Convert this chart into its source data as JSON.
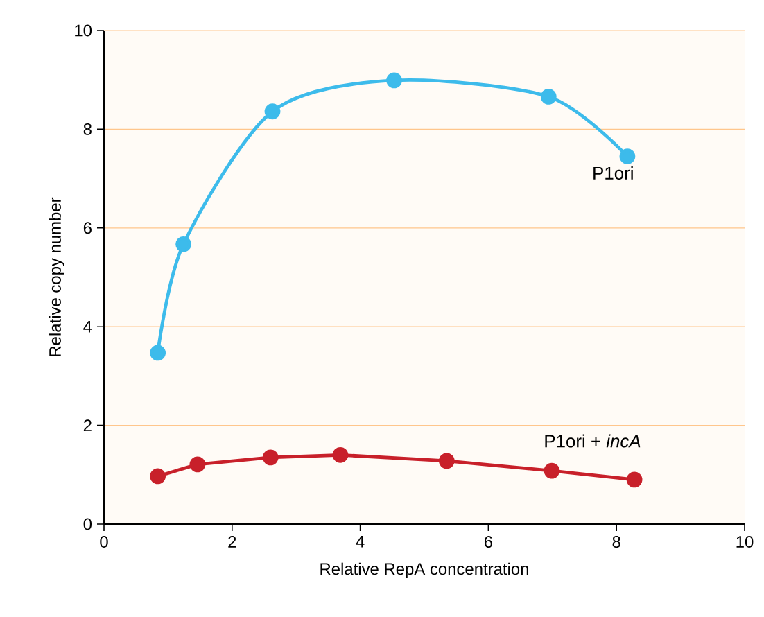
{
  "chart_data": {
    "type": "line",
    "xlabel": "Relative RepA concentration",
    "ylabel": "Relative copy number",
    "xlim": [
      0,
      10
    ],
    "ylim": [
      0,
      10
    ],
    "xticks": [
      0,
      2,
      4,
      6,
      8,
      10
    ],
    "yticks": [
      0,
      2,
      4,
      6,
      8,
      10
    ],
    "grid": "y",
    "marker": "circle",
    "line_style": "solid",
    "series": [
      {
        "name": "P1ori",
        "color": "#3dbbeb",
        "x": [
          0.84,
          1.24,
          2.63,
          4.53,
          6.94,
          8.17
        ],
        "values": [
          3.47,
          5.67,
          8.36,
          8.99,
          8.66,
          7.45
        ]
      },
      {
        "name": "P1ori + *incA*",
        "color": "#c8202a",
        "x": [
          0.84,
          1.46,
          2.6,
          3.69,
          5.35,
          6.99,
          8.28
        ],
        "values": [
          0.97,
          1.21,
          1.35,
          1.4,
          1.28,
          1.08,
          0.9
        ]
      }
    ]
  }
}
